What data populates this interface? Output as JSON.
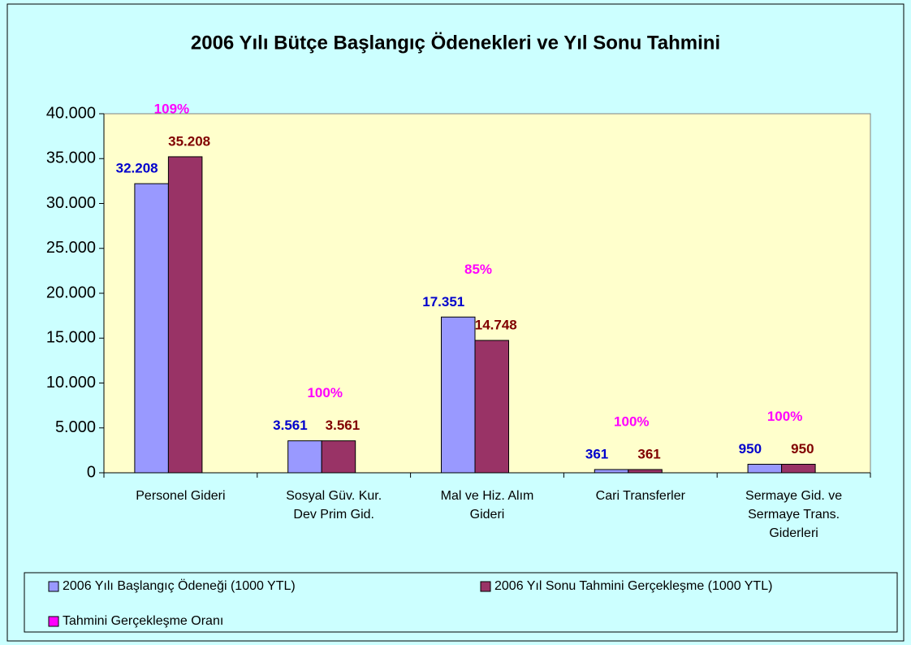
{
  "chart_data": {
    "type": "bar",
    "title": "2006 Yılı Bütçe Başlangıç Ödenekleri ve Yıl Sonu Tahmini",
    "categories": [
      "Personel Gideri",
      "Sosyal Güv. Kur. Dev Prim Gid.",
      "Mal ve Hiz. Alım Gideri",
      "Cari Transferler",
      "Sermaye Gid. ve Sermaye Trans. Giderleri"
    ],
    "series": [
      {
        "name": "2006 Yılı Başlangıç Ödeneği (1000 YTL)",
        "color": "#9999ff",
        "values": [
          32208,
          3561,
          17351,
          361,
          950
        ],
        "value_labels": [
          "32.208",
          "3.561",
          "17.351",
          "361",
          "950"
        ],
        "label_color": "#0000cc"
      },
      {
        "name": "2006 Yıl Sonu Tahmini Gerçekleşme (1000 YTL)",
        "color": "#993366",
        "values": [
          35208,
          3561,
          14748,
          361,
          950
        ],
        "value_labels": [
          "35.208",
          "3.561",
          "14.748",
          "361",
          "950"
        ],
        "label_color": "#800000"
      },
      {
        "name": "Tahmini Gerçekleşme Oranı",
        "color": "#ff00ff",
        "values": [
          109,
          100,
          85,
          100,
          100
        ],
        "value_labels": [
          "109%",
          "100%",
          "85%",
          "100%",
          "100%"
        ]
      }
    ],
    "ylim": [
      0,
      40000
    ],
    "yticks": [
      0,
      {
        "value": 5000,
        "label": "5.000"
      },
      {
        "value": 10000,
        "label": "10.000"
      },
      {
        "value": 15000,
        "label": "15.000"
      },
      {
        "value": 20000,
        "label": "20.000"
      },
      {
        "value": 25000,
        "label": "25.000"
      },
      {
        "value": 30000,
        "label": "30.000"
      },
      {
        "value": 35000,
        "label": "35.000"
      },
      {
        "value": 40000,
        "label": "40.000"
      }
    ],
    "grid": false
  }
}
